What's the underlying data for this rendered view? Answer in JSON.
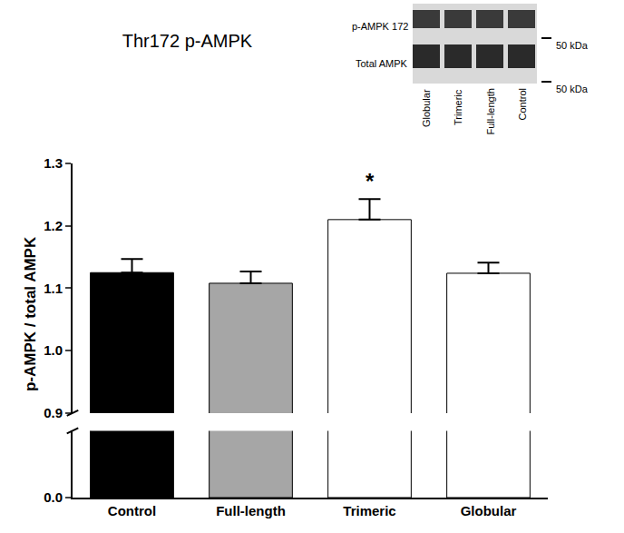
{
  "chart_data": {
    "type": "bar",
    "title": "Thr172 p-AMPK",
    "ylabel": "p-AMPK / total AMPK",
    "categories": [
      "Control",
      "Full-length",
      "Trimeric",
      "Globular"
    ],
    "values": [
      1.125,
      1.108,
      1.21,
      1.124
    ],
    "errors": [
      0.022,
      0.019,
      0.033,
      0.017
    ],
    "colors": [
      "#000000",
      "#a6a6a6",
      "#ffffff",
      "#ffffff"
    ],
    "ylim": [
      0,
      1.3
    ],
    "yticks": [
      {
        "value": 0,
        "label": "0.0"
      },
      0.9,
      {
        "value": 1,
        "label": "1.0"
      },
      1.1,
      1.2,
      1.3
    ],
    "grid": false,
    "annotations": [
      {
        "text": "*",
        "x": "Trimeric"
      }
    ],
    "inset": {
      "rows": [
        "p-AMPK 172",
        "Total AMPK"
      ],
      "lanes": [
        "Globular",
        "Trimeric",
        "Full-length",
        "Control"
      ],
      "size_labels": [
        "50 kDa",
        "50 kDa"
      ]
    }
  }
}
